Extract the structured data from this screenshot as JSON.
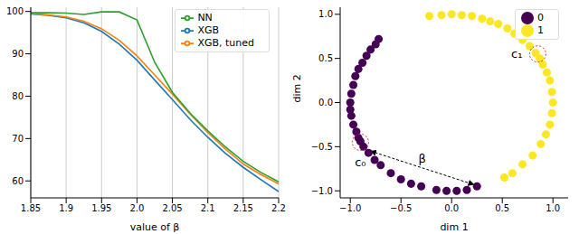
{
  "chart_data": [
    {
      "type": "line",
      "x_label": "value of β",
      "x": [
        1.85,
        1.875,
        1.9,
        1.925,
        1.95,
        1.975,
        2.0,
        2.025,
        2.05,
        2.075,
        2.1,
        2.125,
        2.15,
        2.175,
        2.2
      ],
      "xlim": [
        1.85,
        2.2
      ],
      "xticks": [
        1.85,
        1.9,
        1.95,
        {
          "value": 2,
          "label": "2.0"
        },
        2.05,
        2.1,
        2.15,
        2.2
      ],
      "ylim": [
        56,
        101
      ],
      "yticks": [
        60,
        70,
        80,
        90,
        100
      ],
      "grid": "x",
      "legend": "upper right",
      "series": [
        {
          "name": "XGB",
          "color": "#1f77b4",
          "values": [
            99.4,
            99.1,
            98.5,
            97.3,
            95.3,
            92.3,
            88.5,
            83.8,
            79.2,
            74.5,
            70.3,
            66.5,
            63.2,
            60.3,
            57.5
          ]
        },
        {
          "name": "XGB, tuned",
          "color": "#ff7f0e",
          "values": [
            99.5,
            99.2,
            98.7,
            97.7,
            95.9,
            93.2,
            89.5,
            85.0,
            80.5,
            75.8,
            71.4,
            67.5,
            64.0,
            61.5,
            59.3
          ]
        },
        {
          "name": "NN",
          "color": "#2ca02c",
          "values": [
            99.7,
            99.7,
            99.6,
            99.3,
            99.9,
            99.9,
            98.0,
            88.0,
            80.9,
            76.0,
            71.8,
            68.0,
            64.6,
            62.0,
            59.8
          ]
        }
      ]
    },
    {
      "type": "scatter",
      "x_label": "dim 1",
      "y_label": "dim 2",
      "xlim": [
        -1.1,
        1.15
      ],
      "ylim": [
        -1.08,
        1.08
      ],
      "xticks": [
        {
          "value": -1,
          "label": "−1.0"
        },
        {
          "value": -0.5,
          "label": "−0.5"
        },
        {
          "value": 0,
          "label": "0.0"
        },
        0.5,
        {
          "value": 1,
          "label": "1.0"
        }
      ],
      "yticks": [
        {
          "value": -1,
          "label": "−1.0"
        },
        {
          "value": -0.5,
          "label": "−0.5"
        },
        {
          "value": 0,
          "label": "0.0"
        },
        0.5,
        {
          "value": 1,
          "label": "1.0"
        }
      ],
      "grid": false,
      "legend": "upper right",
      "series": [
        {
          "name": "0",
          "color": "#440154",
          "x": [
            -0.72,
            -0.75,
            -0.8,
            -0.84,
            -0.88,
            -0.92,
            -0.95,
            -0.97,
            -0.99,
            -1.0,
            -1.0,
            -0.99,
            -0.97,
            -0.94,
            -0.92,
            -0.9,
            -0.87,
            -0.82,
            -0.76,
            -0.7,
            -0.6,
            -0.5,
            -0.4,
            -0.3,
            -0.15,
            -0.05,
            0.05,
            0.15,
            0.25
          ],
          "y": [
            0.72,
            0.66,
            0.6,
            0.53,
            0.45,
            0.38,
            0.3,
            0.2,
            0.1,
            0.0,
            -0.08,
            -0.15,
            -0.25,
            -0.33,
            -0.4,
            -0.44,
            -0.5,
            -0.57,
            -0.65,
            -0.71,
            -0.8,
            -0.87,
            -0.92,
            -0.95,
            -0.99,
            -1.0,
            -1.0,
            -0.99,
            -0.95
          ]
        },
        {
          "name": "1",
          "color": "#fde725",
          "x": [
            -0.22,
            -0.1,
            0.0,
            0.1,
            0.2,
            0.3,
            0.38,
            0.46,
            0.55,
            0.62,
            0.7,
            0.77,
            0.83,
            0.87,
            0.9,
            0.94,
            0.97,
            0.99,
            1.0,
            0.99,
            0.97,
            0.93,
            0.88,
            0.8,
            0.7,
            0.6,
            0.52
          ],
          "y": [
            0.98,
            0.99,
            1.0,
            0.99,
            0.98,
            0.95,
            0.92,
            0.89,
            0.84,
            0.78,
            0.71,
            0.64,
            0.56,
            0.5,
            0.43,
            0.34,
            0.25,
            0.12,
            0.0,
            -0.12,
            -0.25,
            -0.36,
            -0.47,
            -0.6,
            -0.7,
            -0.8,
            -0.85
          ]
        }
      ],
      "annotations": [
        {
          "text": "c₀",
          "x": -0.9,
          "y": -0.45
        },
        {
          "text": "c₁",
          "x": 0.85,
          "y": 0.55
        }
      ],
      "arrows": [
        {
          "text": "β",
          "from": [
            -0.8,
            -0.55
          ],
          "to": [
            0.22,
            -0.93
          ]
        }
      ]
    }
  ]
}
